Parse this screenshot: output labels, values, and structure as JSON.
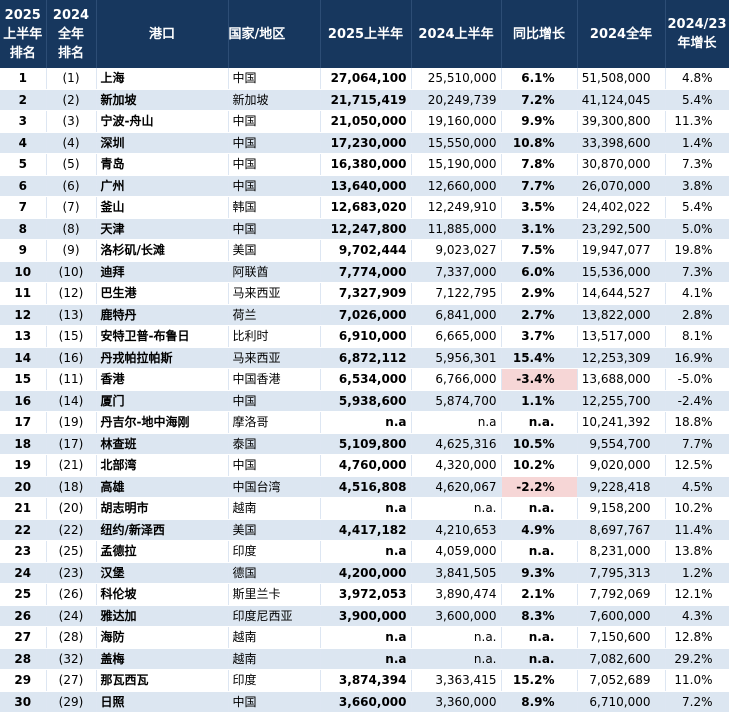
{
  "header": {
    "rank2025": [
      "2025",
      "上半年",
      "排名"
    ],
    "rank2024": [
      "2024",
      "全年",
      "排名"
    ],
    "port": "港口",
    "country": "国家/地区",
    "h1_2025": "2025上半年",
    "h1_2024": "2024上半年",
    "yoy": "同比增长",
    "full2024": "2024全年",
    "growth": [
      "2024/23",
      "年增长"
    ]
  },
  "rows": [
    {
      "rank": "1",
      "prev": "(1)",
      "port": "上海",
      "country": "中国",
      "h1_2025": "27,064,100",
      "h1_2024": "25,510,000",
      "yoy": "6.1%",
      "full2024": "51,508,000",
      "growth": "4.8%"
    },
    {
      "rank": "2",
      "prev": "(2)",
      "port": "新加坡",
      "country": "新加坡",
      "h1_2025": "21,715,419",
      "h1_2024": "20,249,739",
      "yoy": "7.2%",
      "full2024": "41,124,045",
      "growth": "5.4%"
    },
    {
      "rank": "3",
      "prev": "(3)",
      "port": "宁波-舟山",
      "country": "中国",
      "h1_2025": "21,050,000",
      "h1_2024": "19,160,000",
      "yoy": "9.9%",
      "full2024": "39,300,800",
      "growth": "11.3%"
    },
    {
      "rank": "4",
      "prev": "(4)",
      "port": "深圳",
      "country": "中国",
      "h1_2025": "17,230,000",
      "h1_2024": "15,550,000",
      "yoy": "10.8%",
      "full2024": "33,398,600",
      "growth": "1.4%"
    },
    {
      "rank": "5",
      "prev": "(5)",
      "port": "青岛",
      "country": "中国",
      "h1_2025": "16,380,000",
      "h1_2024": "15,190,000",
      "yoy": "7.8%",
      "full2024": "30,870,000",
      "growth": "7.3%"
    },
    {
      "rank": "6",
      "prev": "(6)",
      "port": "广州",
      "country": "中国",
      "h1_2025": "13,640,000",
      "h1_2024": "12,660,000",
      "yoy": "7.7%",
      "full2024": "26,070,000",
      "growth": "3.8%"
    },
    {
      "rank": "7",
      "prev": "(7)",
      "port": "釜山",
      "country": "韩国",
      "h1_2025": "12,683,020",
      "h1_2024": "12,249,910",
      "yoy": "3.5%",
      "full2024": "24,402,022",
      "growth": "5.4%"
    },
    {
      "rank": "8",
      "prev": "(8)",
      "port": "天津",
      "country": "中国",
      "h1_2025": "12,247,800",
      "h1_2024": "11,885,000",
      "yoy": "3.1%",
      "full2024": "23,292,500",
      "growth": "5.0%"
    },
    {
      "rank": "9",
      "prev": "(9)",
      "port": "洛杉矶/长滩",
      "country": "美国",
      "h1_2025": "9,702,444",
      "h1_2024": "9,023,027",
      "yoy": "7.5%",
      "full2024": "19,947,077",
      "growth": "19.8%"
    },
    {
      "rank": "10",
      "prev": "(10)",
      "port": "迪拜",
      "country": "阿联酋",
      "h1_2025": "7,774,000",
      "h1_2024": "7,337,000",
      "yoy": "6.0%",
      "full2024": "15,536,000",
      "growth": "7.3%"
    },
    {
      "rank": "11",
      "prev": "(12)",
      "port": "巴生港",
      "country": "马来西亚",
      "h1_2025": "7,327,909",
      "h1_2024": "7,122,795",
      "yoy": "2.9%",
      "full2024": "14,644,527",
      "growth": "4.1%"
    },
    {
      "rank": "12",
      "prev": "(13)",
      "port": "鹿特丹",
      "country": "荷兰",
      "h1_2025": "7,026,000",
      "h1_2024": "6,841,000",
      "yoy": "2.7%",
      "full2024": "13,822,000",
      "growth": "2.8%"
    },
    {
      "rank": "13",
      "prev": "(15)",
      "port": "安特卫普-布鲁日",
      "country": "比利时",
      "h1_2025": "6,910,000",
      "h1_2024": "6,665,000",
      "yoy": "3.7%",
      "full2024": "13,517,000",
      "growth": "8.1%"
    },
    {
      "rank": "14",
      "prev": "(16)",
      "port": "丹戎帕拉帕斯",
      "country": "马来西亚",
      "h1_2025": "6,872,112",
      "h1_2024": "5,956,301",
      "yoy": "15.4%",
      "full2024": "12,253,309",
      "growth": "16.9%"
    },
    {
      "rank": "15",
      "prev": "(11)",
      "port": "香港",
      "country": "中国香港",
      "h1_2025": "6,534,000",
      "h1_2024": "6,766,000",
      "yoy": "-3.4%",
      "full2024": "13,688,000",
      "growth": "-5.0%",
      "neg": true
    },
    {
      "rank": "16",
      "prev": "(14)",
      "port": "厦门",
      "country": "中国",
      "h1_2025": "5,938,600",
      "h1_2024": "5,874,700",
      "yoy": "1.1%",
      "full2024": "12,255,700",
      "growth": "-2.4%"
    },
    {
      "rank": "17",
      "prev": "(19)",
      "port": "丹吉尔-地中海刚",
      "country": "摩洛哥",
      "h1_2025": "n.a",
      "h1_2024": "n.a",
      "yoy": "n.a.",
      "full2024": "10,241,392",
      "growth": "18.8%"
    },
    {
      "rank": "18",
      "prev": "(17)",
      "port": "林查班",
      "country": "泰国",
      "h1_2025": "5,109,800",
      "h1_2024": "4,625,316",
      "yoy": "10.5%",
      "full2024": "9,554,700",
      "growth": "7.7%"
    },
    {
      "rank": "19",
      "prev": "(21)",
      "port": "北部湾",
      "country": "中国",
      "h1_2025": "4,760,000",
      "h1_2024": "4,320,000",
      "yoy": "10.2%",
      "full2024": "9,020,000",
      "growth": "12.5%"
    },
    {
      "rank": "20",
      "prev": "(18)",
      "port": "高雄",
      "country": "中国台湾",
      "h1_2025": "4,516,808",
      "h1_2024": "4,620,067",
      "yoy": "-2.2%",
      "full2024": "9,228,418",
      "growth": "4.5%",
      "neg": true
    },
    {
      "rank": "21",
      "prev": "(20)",
      "port": "胡志明市",
      "country": "越南",
      "h1_2025": "n.a",
      "h1_2024": "n.a.",
      "yoy": "n.a.",
      "full2024": "9,158,200",
      "growth": "10.2%"
    },
    {
      "rank": "22",
      "prev": "(22)",
      "port": "纽约/新泽西",
      "country": "美国",
      "h1_2025": "4,417,182",
      "h1_2024": "4,210,653",
      "yoy": "4.9%",
      "full2024": "8,697,767",
      "growth": "11.4%"
    },
    {
      "rank": "23",
      "prev": "(25)",
      "port": "孟德拉",
      "country": "印度",
      "h1_2025": "n.a",
      "h1_2024": "4,059,000",
      "yoy": "n.a.",
      "full2024": "8,231,000",
      "growth": "13.8%"
    },
    {
      "rank": "24",
      "prev": "(23)",
      "port": "汉堡",
      "country": "德国",
      "h1_2025": "4,200,000",
      "h1_2024": "3,841,505",
      "yoy": "9.3%",
      "full2024": "7,795,313",
      "growth": "1.2%"
    },
    {
      "rank": "25",
      "prev": "(26)",
      "port": "科伦坡",
      "country": "斯里兰卡",
      "h1_2025": "3,972,053",
      "h1_2024": "3,890,474",
      "yoy": "2.1%",
      "full2024": "7,792,069",
      "growth": "12.1%"
    },
    {
      "rank": "26",
      "prev": "(24)",
      "port": "雅达加",
      "country": "印度尼西亚",
      "h1_2025": "3,900,000",
      "h1_2024": "3,600,000",
      "yoy": "8.3%",
      "full2024": "7,600,000",
      "growth": "4.3%"
    },
    {
      "rank": "27",
      "prev": "(28)",
      "port": "海防",
      "country": "越南",
      "h1_2025": "n.a",
      "h1_2024": "n.a.",
      "yoy": "n.a.",
      "full2024": "7,150,600",
      "growth": "12.8%"
    },
    {
      "rank": "28",
      "prev": "(32)",
      "port": "盖梅",
      "country": "越南",
      "h1_2025": "n.a",
      "h1_2024": "n.a.",
      "yoy": "n.a.",
      "full2024": "7,082,600",
      "growth": "29.2%"
    },
    {
      "rank": "29",
      "prev": "(27)",
      "port": "那瓦西瓦",
      "country": "印度",
      "h1_2025": "3,874,394",
      "h1_2024": "3,363,415",
      "yoy": "15.2%",
      "full2024": "7,052,689",
      "growth": "11.0%"
    },
    {
      "rank": "30",
      "prev": "(29)",
      "port": "日照",
      "country": "中国",
      "h1_2025": "3,660,000",
      "h1_2024": "3,360,000",
      "yoy": "8.9%",
      "full2024": "6,710,000",
      "growth": "7.2%"
    }
  ]
}
